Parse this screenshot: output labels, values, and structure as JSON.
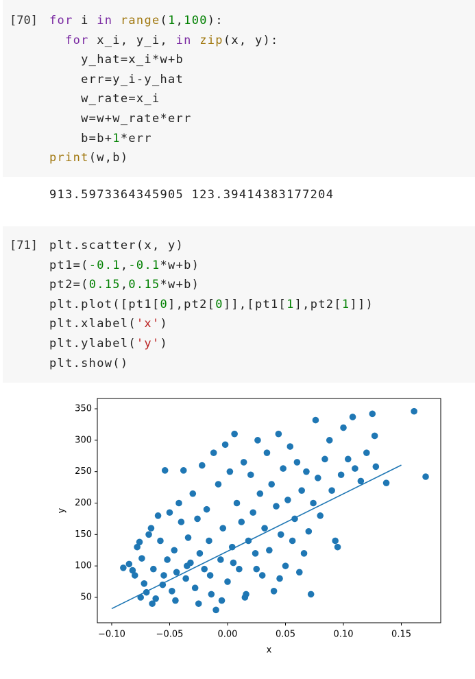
{
  "cells": [
    {
      "prompt": "[70]",
      "input": [
        [
          {
            "text": "for",
            "color": "#7928a1"
          },
          {
            "text": " i ",
            "color": "#222222"
          },
          {
            "text": "in",
            "color": "#7928a1"
          },
          {
            "text": " ",
            "color": "#222222"
          },
          {
            "text": "range",
            "color": "#a0770e"
          },
          {
            "text": "(",
            "color": "#222222"
          },
          {
            "text": "1",
            "color": "#008000"
          },
          {
            "text": ",",
            "color": "#222222"
          },
          {
            "text": "100",
            "color": "#008000"
          },
          {
            "text": "):",
            "color": "#222222"
          }
        ],
        [
          {
            "text": "  ",
            "color": "#222222"
          },
          {
            "text": "for",
            "color": "#7928a1"
          },
          {
            "text": " x_i, y_i, ",
            "color": "#222222"
          },
          {
            "text": "in",
            "color": "#7928a1"
          },
          {
            "text": " ",
            "color": "#222222"
          },
          {
            "text": "zip",
            "color": "#a0770e"
          },
          {
            "text": "(x, y):",
            "color": "#222222"
          }
        ],
        [
          {
            "text": "    y_hat=x_i*w+b",
            "color": "#222222"
          }
        ],
        [
          {
            "text": "    err=y_i-y_hat",
            "color": "#222222"
          }
        ],
        [
          {
            "text": "    w_rate=x_i",
            "color": "#222222"
          }
        ],
        [
          {
            "text": "    w=w+w_rate*err",
            "color": "#222222"
          }
        ],
        [
          {
            "text": "    b=b+",
            "color": "#222222"
          },
          {
            "text": "1",
            "color": "#008000"
          },
          {
            "text": "*err",
            "color": "#222222"
          }
        ],
        [
          {
            "text": "print",
            "color": "#a0770e"
          },
          {
            "text": "(w,b)",
            "color": "#222222"
          }
        ]
      ],
      "output": "913.5973364345905 123.39414383177204"
    },
    {
      "prompt": "[71]",
      "input": [
        [
          {
            "text": "plt.scatter(x, y)",
            "color": "#222222"
          }
        ],
        [
          {
            "text": "pt1=(",
            "color": "#222222"
          },
          {
            "text": "-0.1",
            "color": "#008000"
          },
          {
            "text": ",",
            "color": "#222222"
          },
          {
            "text": "-0.1",
            "color": "#008000"
          },
          {
            "text": "*w+b)",
            "color": "#222222"
          }
        ],
        [
          {
            "text": "pt2=(",
            "color": "#222222"
          },
          {
            "text": "0.15",
            "color": "#008000"
          },
          {
            "text": ",",
            "color": "#222222"
          },
          {
            "text": "0.15",
            "color": "#008000"
          },
          {
            "text": "*w+b)",
            "color": "#222222"
          }
        ],
        [
          {
            "text": "plt.plot([pt1[",
            "color": "#222222"
          },
          {
            "text": "0",
            "color": "#008000"
          },
          {
            "text": "],pt2[",
            "color": "#222222"
          },
          {
            "text": "0",
            "color": "#008000"
          },
          {
            "text": "]],[pt1[",
            "color": "#222222"
          },
          {
            "text": "1",
            "color": "#008000"
          },
          {
            "text": "],pt2[",
            "color": "#222222"
          },
          {
            "text": "1",
            "color": "#008000"
          },
          {
            "text": "]])",
            "color": "#222222"
          }
        ],
        [
          {
            "text": "plt.xlabel(",
            "color": "#222222"
          },
          {
            "text": "'x'",
            "color": "#ba2121"
          },
          {
            "text": ")",
            "color": "#222222"
          }
        ],
        [
          {
            "text": "plt.ylabel(",
            "color": "#222222"
          },
          {
            "text": "'y'",
            "color": "#ba2121"
          },
          {
            "text": ")",
            "color": "#222222"
          }
        ],
        [
          {
            "text": "plt.show()",
            "color": "#222222"
          }
        ]
      ]
    }
  ],
  "chart_data": {
    "type": "scatter",
    "x_label": "x",
    "y_label": "y",
    "xlim": [
      -0.1124,
      0.184
    ],
    "ylim": [
      9.6,
      366.4
    ],
    "xticks": [
      {
        "value": -0.1,
        "label": "−0.10"
      },
      {
        "value": -0.05,
        "label": "−0.05"
      },
      {
        "value": 0,
        "label": "0.00"
      },
      {
        "value": 0.05,
        "label": "0.05"
      },
      {
        "value": 0.1,
        "label": "0.10"
      },
      {
        "value": 0.15,
        "label": "0.15"
      }
    ],
    "yticks": [
      50,
      100,
      150,
      200,
      250,
      300,
      350
    ],
    "scatter": {
      "color": "#1f77b4",
      "x": [
        -0.09,
        -0.085,
        -0.082,
        -0.08,
        -0.078,
        -0.076,
        -0.074,
        -0.072,
        -0.07,
        -0.068,
        -0.066,
        -0.064,
        -0.062,
        -0.06,
        -0.058,
        -0.056,
        -0.054,
        -0.052,
        -0.05,
        -0.048,
        -0.046,
        -0.044,
        -0.042,
        -0.04,
        -0.038,
        -0.036,
        -0.034,
        -0.032,
        -0.03,
        -0.028,
        -0.026,
        -0.024,
        -0.022,
        -0.02,
        -0.018,
        -0.016,
        -0.014,
        -0.012,
        -0.01,
        -0.008,
        -0.006,
        -0.004,
        -0.002,
        0.0,
        0.002,
        0.004,
        0.006,
        0.008,
        0.01,
        0.012,
        0.014,
        0.016,
        0.018,
        0.02,
        0.022,
        0.024,
        0.026,
        0.028,
        0.03,
        0.032,
        0.034,
        0.036,
        0.038,
        0.04,
        0.042,
        0.044,
        0.046,
        0.048,
        0.05,
        0.052,
        0.054,
        0.056,
        0.058,
        0.06,
        0.062,
        0.064,
        0.066,
        0.068,
        0.07,
        0.072,
        0.074,
        0.076,
        0.078,
        0.08,
        0.084,
        0.088,
        0.09,
        0.093,
        0.095,
        0.098,
        0.1,
        0.104,
        0.108,
        0.11,
        0.115,
        0.12,
        0.125,
        0.127,
        0.128,
        0.137,
        0.161,
        0.171,
        -0.075,
        -0.065,
        -0.045,
        -0.025,
        -0.005,
        0.015,
        -0.035,
        -0.015,
        0.005,
        0.025,
        -0.055,
        0.045
      ],
      "y": [
        97,
        103,
        93,
        85,
        130,
        138,
        112,
        72,
        58,
        150,
        160,
        95,
        48,
        180,
        140,
        70,
        252,
        110,
        185,
        60,
        125,
        90,
        200,
        170,
        252,
        80,
        145,
        105,
        215,
        65,
        175,
        120,
        260,
        95,
        190,
        140,
        55,
        280,
        30,
        230,
        110,
        160,
        293,
        75,
        250,
        130,
        310,
        200,
        95,
        170,
        265,
        55,
        140,
        245,
        185,
        120,
        300,
        215,
        85,
        160,
        280,
        125,
        230,
        60,
        195,
        310,
        150,
        255,
        100,
        205,
        290,
        140,
        175,
        265,
        90,
        220,
        120,
        250,
        155,
        55,
        200,
        332,
        240,
        180,
        270,
        300,
        220,
        140,
        130,
        245,
        320,
        270,
        337,
        255,
        235,
        280,
        342,
        307,
        258,
        232,
        346,
        242,
        50,
        40,
        45,
        40,
        45,
        50,
        100,
        85,
        105,
        95,
        85,
        80
      ]
    },
    "line": {
      "color": "#1f77b4",
      "x": [
        -0.1,
        0.15
      ],
      "y": [
        32.03,
        260.43
      ]
    }
  }
}
